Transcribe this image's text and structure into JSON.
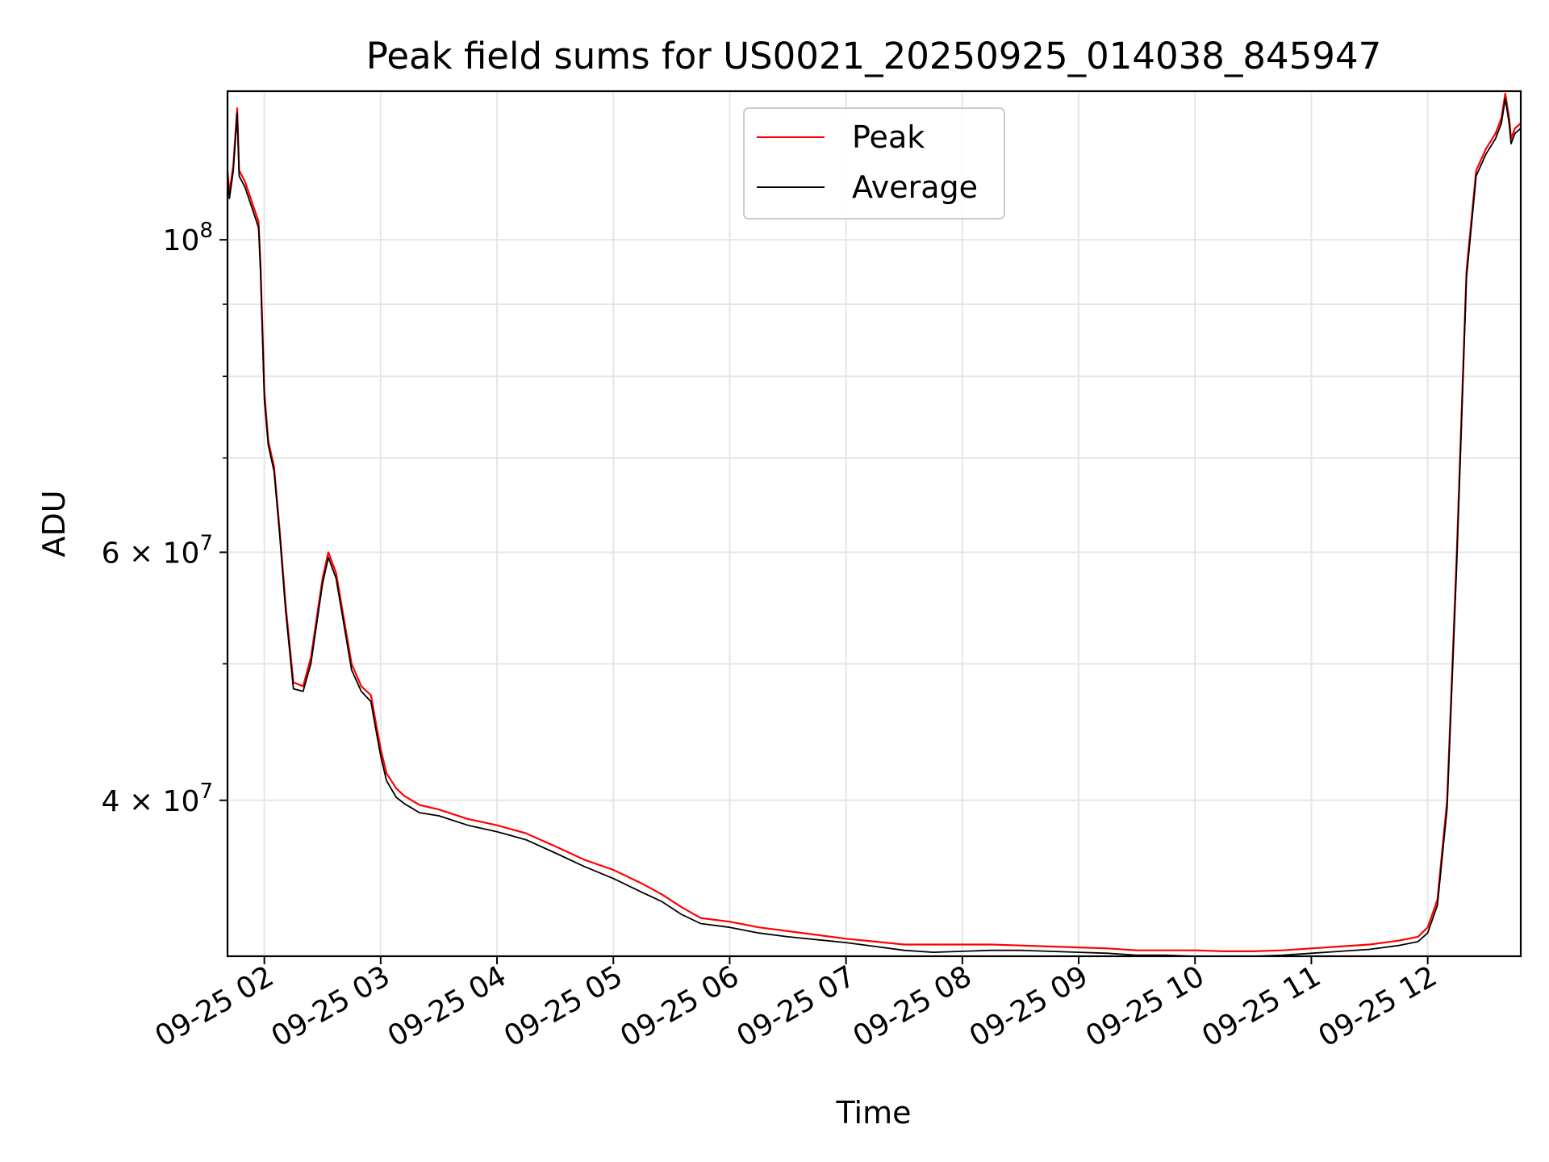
{
  "chart_data": {
    "type": "line",
    "title": "Peak field sums for US0021_20250925_014038_845947",
    "xlabel": "Time",
    "ylabel": "ADU",
    "yscale": "log",
    "ylim": [
      31000000,
      127500000
    ],
    "xlim": [
      "2025-09-25 01:41",
      "2025-09-25 12:48"
    ],
    "grid": true,
    "legend": "upper center",
    "x_ticks": [
      "09-25 02",
      "09-25 03",
      "09-25 04",
      "09-25 05",
      "09-25 06",
      "09-25 07",
      "09-25 08",
      "09-25 09",
      "09-25 10",
      "09-25 11",
      "09-25 12"
    ],
    "y_ticks": [
      {
        "value": 100000000,
        "base": "10",
        "exp": "8",
        "mult": ""
      },
      {
        "value": 60000000,
        "base": "10",
        "exp": "7",
        "mult": "6 × "
      },
      {
        "value": 40000000,
        "base": "10",
        "exp": "7",
        "mult": "4 × "
      }
    ],
    "x": [
      "01:41",
      "01:42",
      "01:44",
      "01:46",
      "01:47",
      "01:50",
      "01:52",
      "01:55",
      "01:57",
      "01:58",
      "02:00",
      "02:02",
      "02:05",
      "02:08",
      "02:11",
      "02:15",
      "02:20",
      "02:24",
      "02:30",
      "02:33",
      "02:37",
      "02:45",
      "02:50",
      "02:55",
      "02:57",
      "03:00",
      "03:03",
      "03:08",
      "03:12",
      "03:16",
      "03:20",
      "03:30",
      "03:45",
      "04:00",
      "04:15",
      "04:30",
      "04:45",
      "05:00",
      "05:15",
      "05:25",
      "05:35",
      "05:45",
      "06:00",
      "06:15",
      "06:30",
      "07:00",
      "07:15",
      "07:30",
      "07:45",
      "08:00",
      "08:15",
      "08:30",
      "08:45",
      "09:00",
      "09:15",
      "09:30",
      "09:45",
      "10:00",
      "10:15",
      "10:30",
      "10:45",
      "11:00",
      "11:15",
      "11:30",
      "11:45",
      "11:55",
      "12:00",
      "12:05",
      "12:10",
      "12:15",
      "12:20",
      "12:25",
      "12:30",
      "12:35",
      "12:38",
      "12:40",
      "12:42",
      "12:43",
      "12:45",
      "12:48"
    ],
    "series": [
      {
        "name": "Peak",
        "color": "#ff0000",
        "values": [
          112000000,
          108000000,
          113000000,
          124000000,
          112000000,
          110000000,
          108000000,
          105000000,
          103000000,
          96000000,
          78000000,
          72000000,
          69000000,
          62000000,
          55000000,
          48500000,
          48200000,
          50500000,
          57500000,
          60000000,
          58000000,
          50000000,
          48200000,
          47500000,
          45800000,
          43500000,
          41800000,
          40800000,
          40300000,
          40000000,
          39700000,
          39400000,
          38800000,
          38400000,
          37900000,
          37100000,
          36300000,
          35700000,
          34900000,
          34300000,
          33600000,
          33000000,
          32800000,
          32500000,
          32300000,
          31900000,
          31750000,
          31600000,
          31600000,
          31600000,
          31600000,
          31550000,
          31500000,
          31450000,
          31400000,
          31300000,
          31300000,
          31300000,
          31250000,
          31250000,
          31300000,
          31400000,
          31500000,
          31600000,
          31800000,
          32000000,
          32500000,
          34000000,
          40000000,
          60000000,
          95000000,
          112000000,
          116000000,
          119000000,
          122000000,
          127000000,
          122000000,
          118000000,
          120000000,
          121000000
        ]
      },
      {
        "name": "Average",
        "color": "#000000",
        "values": [
          111000000,
          107000000,
          112000000,
          123000000,
          111000000,
          109000000,
          107000000,
          104000000,
          102000000,
          95000000,
          77000000,
          71500000,
          68500000,
          61500000,
          54500000,
          48000000,
          47800000,
          50000000,
          57000000,
          59500000,
          57500000,
          49500000,
          47800000,
          47000000,
          45300000,
          43000000,
          41300000,
          40200000,
          39800000,
          39500000,
          39200000,
          39000000,
          38400000,
          38000000,
          37500000,
          36700000,
          35900000,
          35200000,
          34400000,
          33900000,
          33200000,
          32700000,
          32500000,
          32200000,
          32000000,
          31700000,
          31500000,
          31300000,
          31200000,
          31250000,
          31300000,
          31300000,
          31250000,
          31200000,
          31150000,
          31050000,
          31050000,
          31000000,
          31000000,
          31000000,
          31050000,
          31150000,
          31250000,
          31350000,
          31550000,
          31750000,
          32200000,
          33700000,
          39500000,
          59000000,
          94000000,
          111000000,
          115000000,
          118000000,
          121000000,
          126000000,
          121000000,
          117000000,
          119000000,
          120000000
        ]
      }
    ]
  }
}
